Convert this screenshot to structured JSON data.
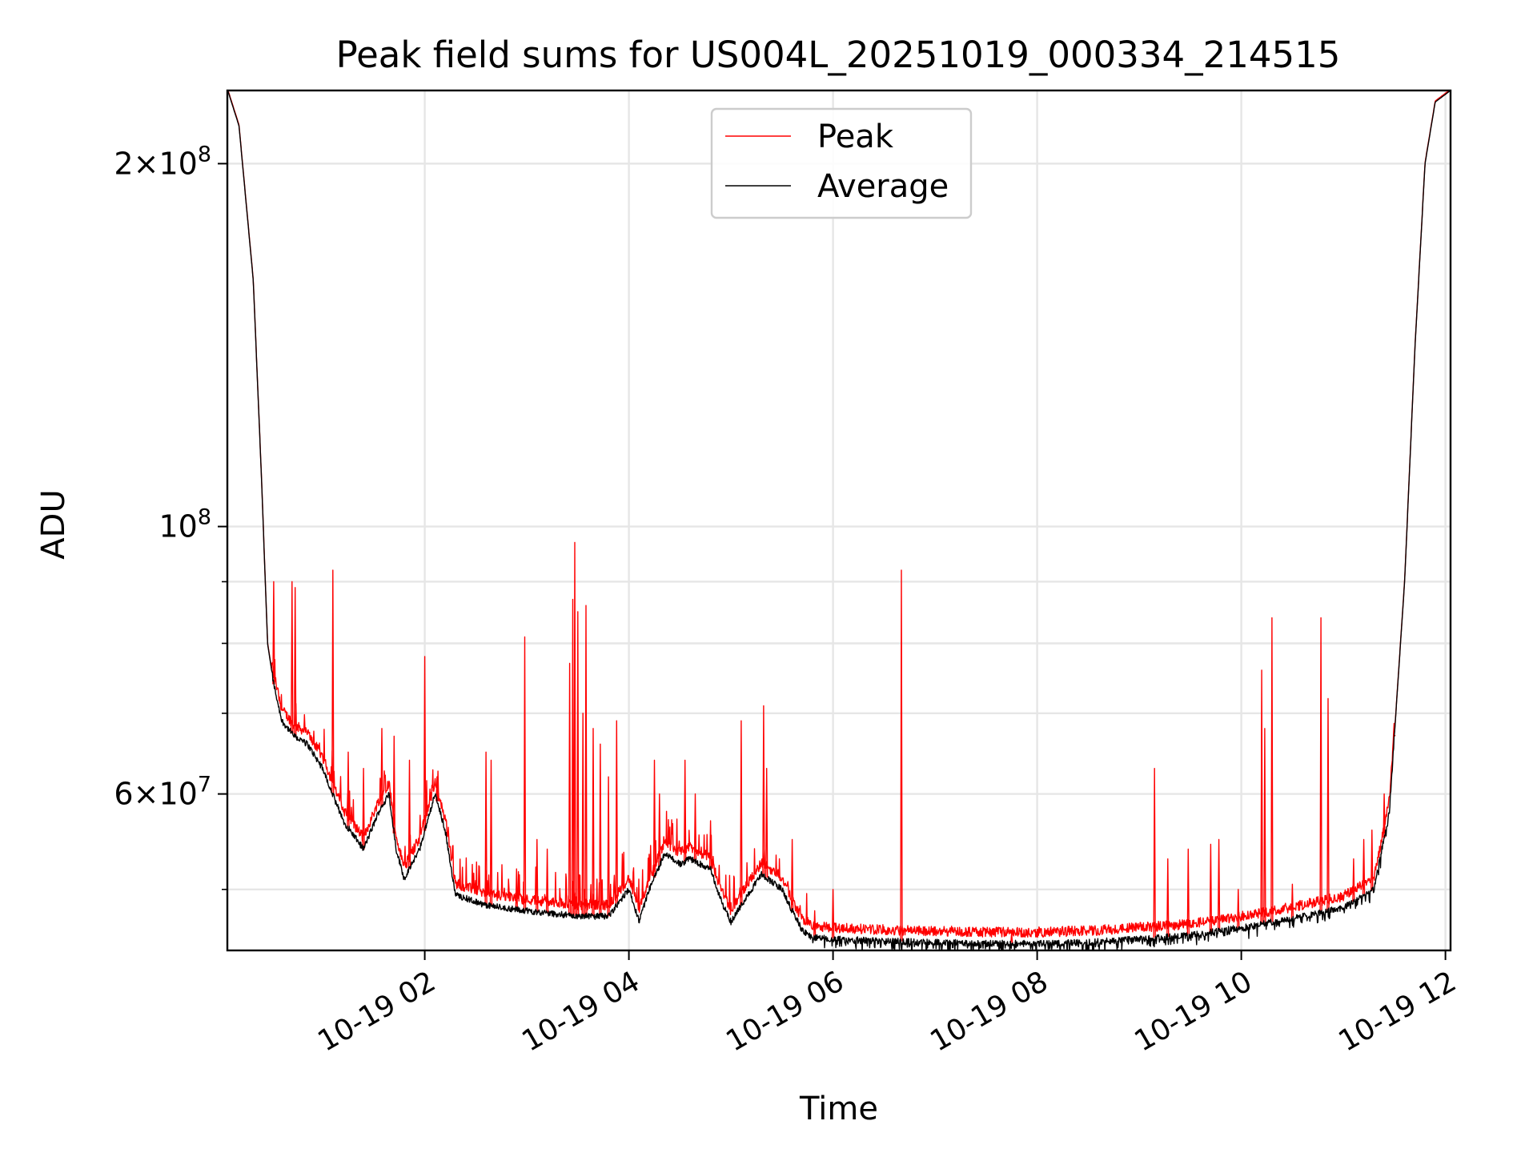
{
  "chart_data": {
    "type": "line",
    "title": "Peak field sums for US004L_20251019_000334_214515",
    "xlabel": "Time",
    "ylabel": "ADU",
    "yscale": "log",
    "xlim": [
      0.066,
      12.05
    ],
    "ylim": [
      44500000,
      230000000
    ],
    "grid": true,
    "legend_position": "upper center",
    "x_ticks": [
      {
        "value": 2,
        "label": "10-19 02"
      },
      {
        "value": 4,
        "label": "10-19 04"
      },
      {
        "value": 6,
        "label": "10-19 06"
      },
      {
        "value": 8,
        "label": "10-19 08"
      },
      {
        "value": 10,
        "label": "10-19 10"
      },
      {
        "value": 12,
        "label": "10-19 12"
      }
    ],
    "y_major_ticks": [
      {
        "value": 100000000,
        "base": "10",
        "exp": "8",
        "mantissa": ""
      },
      {
        "value": 200000000,
        "base": "10",
        "exp": "8",
        "mantissa": "2"
      },
      {
        "value": 60000000,
        "base": "10",
        "exp": "7",
        "mantissa": "6"
      }
    ],
    "y_minor_gridlines": [
      50000000,
      70000000,
      80000000,
      90000000
    ],
    "series": [
      {
        "name": "Peak",
        "color": "#ff0000"
      },
      {
        "name": "Average",
        "color": "#000000"
      }
    ],
    "baseline": {
      "x": [
        0.07,
        0.18,
        0.32,
        0.4,
        0.46,
        0.52,
        0.6,
        0.72,
        0.85,
        1.0,
        1.2,
        1.4,
        1.55,
        1.65,
        1.72,
        1.8,
        1.95,
        2.1,
        2.2,
        2.3,
        2.6,
        3.0,
        3.5,
        3.8,
        4.0,
        4.1,
        4.2,
        4.35,
        4.5,
        4.6,
        4.8,
        4.9,
        5.0,
        5.1,
        5.3,
        5.5,
        5.6,
        5.7,
        5.8,
        6.0,
        6.5,
        7.0,
        7.5,
        8.0,
        8.5,
        9.0,
        9.5,
        10.0,
        10.5,
        11.0,
        11.3,
        11.45,
        11.6,
        11.7,
        11.8,
        11.9,
        12.05
      ],
      "y": [
        230000000,
        215000000,
        160000000,
        110000000,
        80000000,
        74000000,
        69000000,
        67000000,
        66000000,
        63000000,
        57000000,
        54000000,
        58000000,
        60000000,
        54000000,
        51000000,
        54000000,
        60000000,
        56000000,
        49500000,
        48500000,
        48000000,
        47500000,
        47500000,
        50000000,
        47000000,
        50000000,
        53500000,
        52500000,
        53000000,
        52000000,
        49000000,
        47000000,
        48500000,
        51500000,
        50000000,
        48000000,
        46200000,
        45600000,
        45500000,
        45300000,
        45200000,
        45100000,
        45100000,
        45200000,
        45500000,
        45800000,
        46500000,
        47300000,
        48300000,
        50000000,
        58000000,
        90000000,
        140000000,
        200000000,
        225000000,
        230000000
      ]
    },
    "peak_spikes": [
      {
        "x": 0.52,
        "y": 90000000
      },
      {
        "x": 0.7,
        "y": 90000000
      },
      {
        "x": 0.73,
        "y": 89000000
      },
      {
        "x": 1.1,
        "y": 92000000
      },
      {
        "x": 1.25,
        "y": 65000000
      },
      {
        "x": 1.4,
        "y": 63000000
      },
      {
        "x": 1.58,
        "y": 68000000
      },
      {
        "x": 1.7,
        "y": 67000000
      },
      {
        "x": 1.85,
        "y": 64000000
      },
      {
        "x": 2.0,
        "y": 78000000
      },
      {
        "x": 2.12,
        "y": 62000000
      },
      {
        "x": 2.6,
        "y": 65000000
      },
      {
        "x": 2.65,
        "y": 64000000
      },
      {
        "x": 2.9,
        "y": 52000000
      },
      {
        "x": 2.98,
        "y": 81000000
      },
      {
        "x": 3.1,
        "y": 55000000
      },
      {
        "x": 3.2,
        "y": 54000000
      },
      {
        "x": 3.42,
        "y": 77000000
      },
      {
        "x": 3.45,
        "y": 87000000
      },
      {
        "x": 3.47,
        "y": 97000000
      },
      {
        "x": 3.5,
        "y": 85000000
      },
      {
        "x": 3.55,
        "y": 70000000
      },
      {
        "x": 3.58,
        "y": 86000000
      },
      {
        "x": 3.65,
        "y": 68000000
      },
      {
        "x": 3.72,
        "y": 66000000
      },
      {
        "x": 3.8,
        "y": 62000000
      },
      {
        "x": 3.88,
        "y": 69000000
      },
      {
        "x": 4.25,
        "y": 64000000
      },
      {
        "x": 4.3,
        "y": 60000000
      },
      {
        "x": 4.55,
        "y": 64000000
      },
      {
        "x": 4.65,
        "y": 60000000
      },
      {
        "x": 4.8,
        "y": 57000000
      },
      {
        "x": 5.1,
        "y": 69000000
      },
      {
        "x": 5.32,
        "y": 71000000
      },
      {
        "x": 5.35,
        "y": 63000000
      },
      {
        "x": 5.6,
        "y": 55000000
      },
      {
        "x": 5.82,
        "y": 48000000
      },
      {
        "x": 6.0,
        "y": 50000000
      },
      {
        "x": 6.67,
        "y": 92000000
      },
      {
        "x": 7.75,
        "y": 46000000
      },
      {
        "x": 9.15,
        "y": 63000000
      },
      {
        "x": 9.28,
        "y": 53000000
      },
      {
        "x": 9.48,
        "y": 54000000
      },
      {
        "x": 9.7,
        "y": 54500000
      },
      {
        "x": 9.78,
        "y": 55000000
      },
      {
        "x": 9.97,
        "y": 50000000
      },
      {
        "x": 10.2,
        "y": 76000000
      },
      {
        "x": 10.23,
        "y": 68000000
      },
      {
        "x": 10.3,
        "y": 84000000
      },
      {
        "x": 10.5,
        "y": 50500000
      },
      {
        "x": 10.78,
        "y": 84000000
      },
      {
        "x": 10.85,
        "y": 72000000
      },
      {
        "x": 11.1,
        "y": 53000000
      },
      {
        "x": 11.2,
        "y": 55000000
      },
      {
        "x": 11.28,
        "y": 56000000
      },
      {
        "x": 11.4,
        "y": 60000000
      },
      {
        "x": 11.5,
        "y": 67000000
      }
    ]
  }
}
